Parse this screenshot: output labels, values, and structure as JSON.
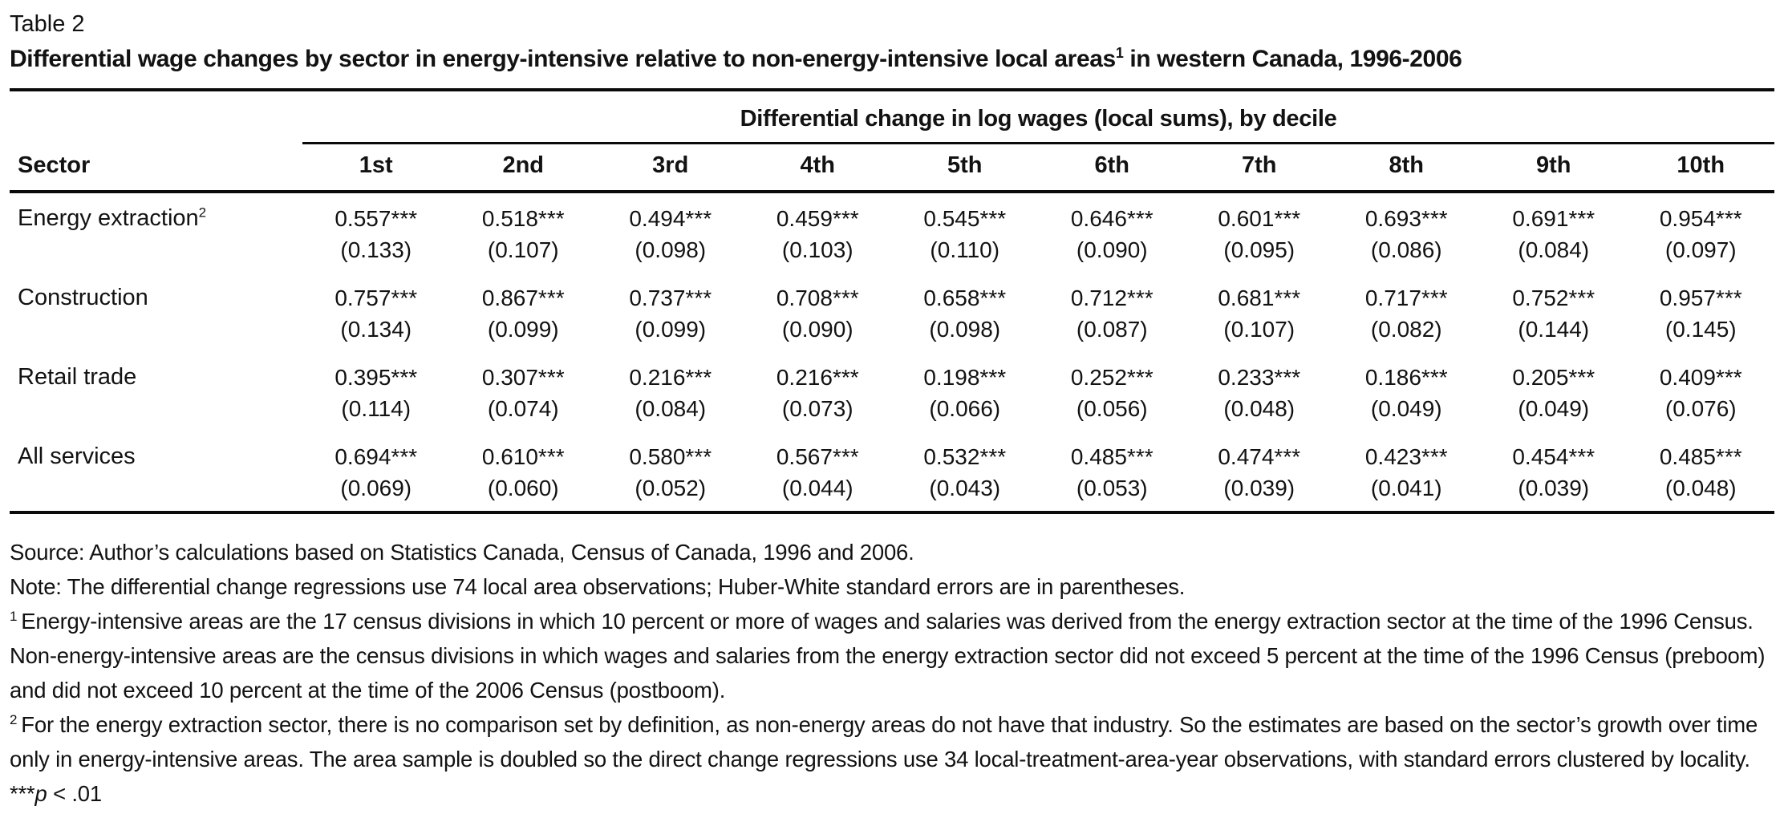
{
  "colors": {
    "background": "#ffffff",
    "text": "#121212",
    "rule": "#0a0a0a"
  },
  "header": {
    "table_label": "Table 2",
    "title_pre": "Differential wage changes by sector in energy-intensive relative to non-energy-intensive local areas",
    "title_sup": "1",
    "title_post": " in western Canada, 1996-2006"
  },
  "table": {
    "spanner": "Differential change in log wages (local sums), by decile",
    "sector_header": "Sector",
    "decile_headers": [
      "1st",
      "2nd",
      "3rd",
      "4th",
      "5th",
      "6th",
      "7th",
      "8th",
      "9th",
      "10th"
    ],
    "significance": "***",
    "rows": [
      {
        "sector": "Energy extraction",
        "sector_sup": "2",
        "coefs": [
          "0.557",
          "0.518",
          "0.494",
          "0.459",
          "0.545",
          "0.646",
          "0.601",
          "0.693",
          "0.691",
          "0.954"
        ],
        "ses": [
          "(0.133)",
          "(0.107)",
          "(0.098)",
          "(0.103)",
          "(0.110)",
          "(0.090)",
          "(0.095)",
          "(0.086)",
          "(0.084)",
          "(0.097)"
        ]
      },
      {
        "sector": "Construction",
        "sector_sup": "",
        "coefs": [
          "0.757",
          "0.867",
          "0.737",
          "0.708",
          "0.658",
          "0.712",
          "0.681",
          "0.717",
          "0.752",
          "0.957"
        ],
        "ses": [
          "(0.134)",
          "(0.099)",
          "(0.099)",
          "(0.090)",
          "(0.098)",
          "(0.087)",
          "(0.107)",
          "(0.082)",
          "(0.144)",
          "(0.145)"
        ]
      },
      {
        "sector": "Retail trade",
        "sector_sup": "",
        "coefs": [
          "0.395",
          "0.307",
          "0.216",
          "0.216",
          "0.198",
          "0.252",
          "0.233",
          "0.186",
          "0.205",
          "0.409"
        ],
        "ses": [
          "(0.114)",
          "(0.074)",
          "(0.084)",
          "(0.073)",
          "(0.066)",
          "(0.056)",
          "(0.048)",
          "(0.049)",
          "(0.049)",
          "(0.076)"
        ]
      },
      {
        "sector": "All services",
        "sector_sup": "",
        "coefs": [
          "0.694",
          "0.610",
          "0.580",
          "0.567",
          "0.532",
          "0.485",
          "0.474",
          "0.423",
          "0.454",
          "0.485"
        ],
        "ses": [
          "(0.069)",
          "(0.060)",
          "(0.052)",
          "(0.044)",
          "(0.043)",
          "(0.053)",
          "(0.039)",
          "(0.041)",
          "(0.039)",
          "(0.048)"
        ]
      }
    ]
  },
  "footnotes": {
    "source": "Source: Author’s calculations based on Statistics Canada, Census of Canada, 1996 and 2006.",
    "note": "Note: The differential change regressions use 74 local area observations; Huber-White standard errors are in parentheses.",
    "fn1_marker": "1",
    "fn1_text": "Energy-intensive areas are the 17 census divisions in which 10 percent or more of wages and salaries was derived from the energy extraction sector at the time of the 1996 Census. Non-energy-intensive areas are the census divisions in which wages and salaries from the energy extraction sector did not exceed 5 percent at the time of the 1996 Census (preboom) and did not exceed 10 percent at the time of the 2006 Census (postboom).",
    "fn2_marker": "2",
    "fn2_text": "For the energy extraction sector, there is no comparison set by definition, as non-energy areas do not have that industry. So the estimates are based on the sector’s growth over time only in energy-intensive areas. The area sample is doubled so the direct change regressions use 34 local-treatment-area-year observations, with standard errors clustered by locality.",
    "sig_stars": "***",
    "sig_var": "p",
    "sig_rest": " < .01"
  }
}
